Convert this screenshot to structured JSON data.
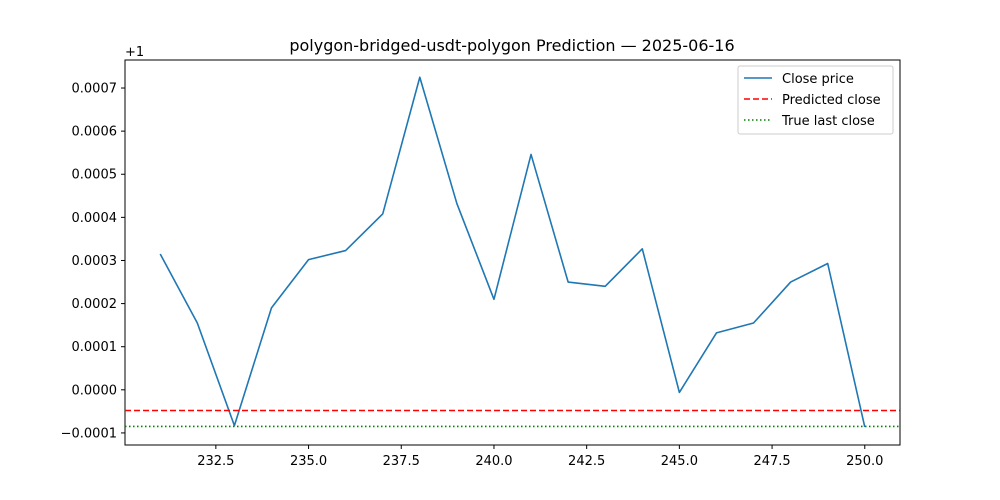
{
  "chart_data": {
    "type": "line",
    "title": "polygon-bridged-usdt-polygon Prediction — 2025-06-16",
    "xlabel": "",
    "ylabel": "",
    "offset_label": "+1",
    "y_offset": 1,
    "xlim": [
      230.05,
      250.95
    ],
    "ylim": [
      -0.000128,
      0.000765
    ],
    "x_ticks": [
      232.5,
      235.0,
      237.5,
      240.0,
      242.5,
      245.0,
      247.5,
      250.0
    ],
    "x_tick_labels": [
      "232.5",
      "235.0",
      "237.5",
      "240.0",
      "242.5",
      "245.0",
      "247.5",
      "250.0"
    ],
    "y_ticks": [
      -0.0001,
      0.0,
      0.0001,
      0.0002,
      0.0003,
      0.0004,
      0.0005,
      0.0006,
      0.0007
    ],
    "y_tick_labels": [
      "−0.0001",
      "0.0000",
      "0.0001",
      "0.0002",
      "0.0003",
      "0.0004",
      "0.0005",
      "0.0006",
      "0.0007"
    ],
    "grid": false,
    "legend_position": "top-right",
    "series": [
      {
        "name": "Close price",
        "color": "#1f77b4",
        "style": "solid",
        "x": [
          231,
          232,
          233,
          234,
          235,
          236,
          237,
          238,
          239,
          240,
          241,
          242,
          243,
          244,
          245,
          246,
          247,
          248,
          249,
          250
        ],
        "y": [
          0.000315,
          0.000155,
          -8.3e-05,
          0.00019,
          0.000302,
          0.000323,
          0.000408,
          0.000725,
          0.000432,
          0.00021,
          0.000546,
          0.00025,
          0.00024,
          0.000327,
          -6e-06,
          0.000132,
          0.000155,
          0.00025,
          0.000293,
          -8.6e-05
        ]
      },
      {
        "name": "Predicted close",
        "color": "#ff0000",
        "style": "dashed",
        "hline": -4.8e-05
      },
      {
        "name": "True last close",
        "color": "#008000",
        "style": "dotted",
        "hline": -8.5e-05
      }
    ]
  }
}
